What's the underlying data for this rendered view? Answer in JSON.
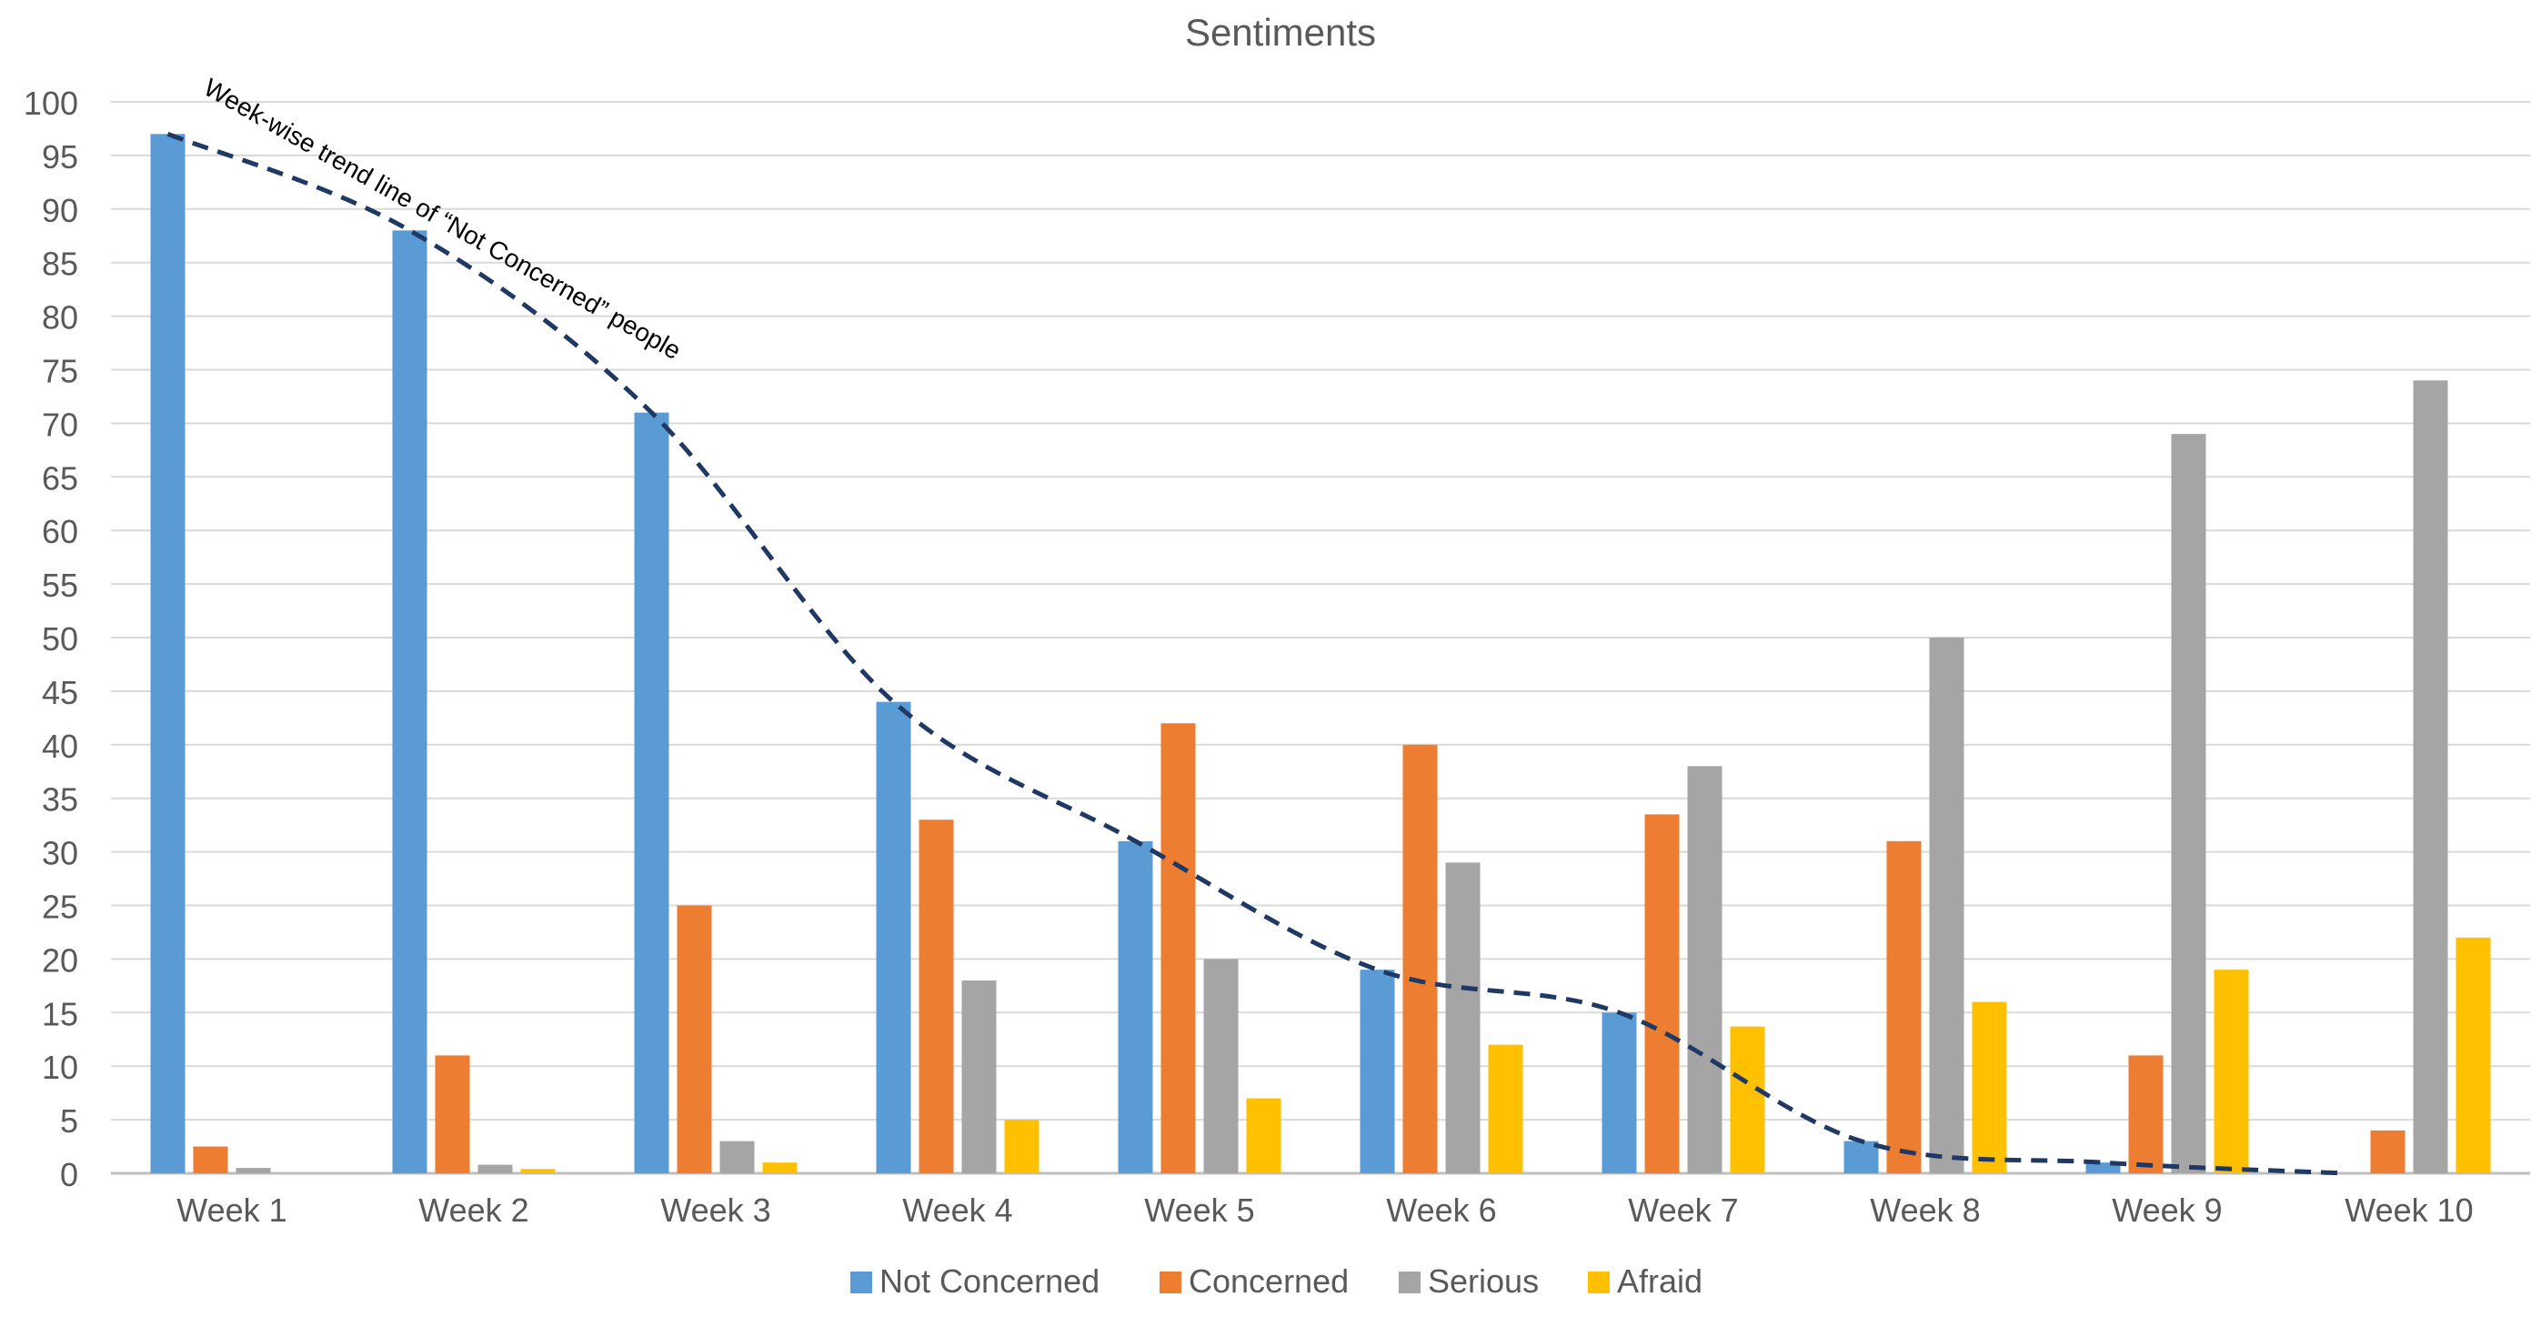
{
  "chart_data": {
    "type": "bar",
    "title": "Sentiments",
    "xlabel": "",
    "ylabel": "",
    "ylim": [
      0,
      100
    ],
    "ytick_step": 5,
    "grid": true,
    "legend_position": "bottom",
    "categories": [
      "Week 1",
      "Week 2",
      "Week 3",
      "Week 4",
      "Week 5",
      "Week 6",
      "Week 7",
      "Week 8",
      "Week 9",
      "Week 10"
    ],
    "series": [
      {
        "name": "Not Concerned",
        "color": "#5B9BD5",
        "values": [
          97,
          88,
          71,
          44,
          31,
          19,
          15,
          3,
          1,
          0
        ]
      },
      {
        "name": "Concerned",
        "color": "#ED7D31",
        "values": [
          2.5,
          11,
          25,
          33,
          42,
          40,
          33.5,
          31,
          11,
          4
        ]
      },
      {
        "name": "Serious",
        "color": "#A5A5A5",
        "values": [
          0.5,
          0.8,
          3,
          18,
          20,
          29,
          38,
          50,
          69,
          74
        ]
      },
      {
        "name": "Afraid",
        "color": "#FFC000",
        "values": [
          0,
          0.4,
          1,
          5,
          7,
          12,
          13.7,
          16,
          19,
          22
        ]
      }
    ],
    "trendline": {
      "label": "Week-wise trend line of “Not Concerned” people",
      "series": "Not Concerned",
      "color": "#1F3864",
      "style": "dashed"
    }
  }
}
